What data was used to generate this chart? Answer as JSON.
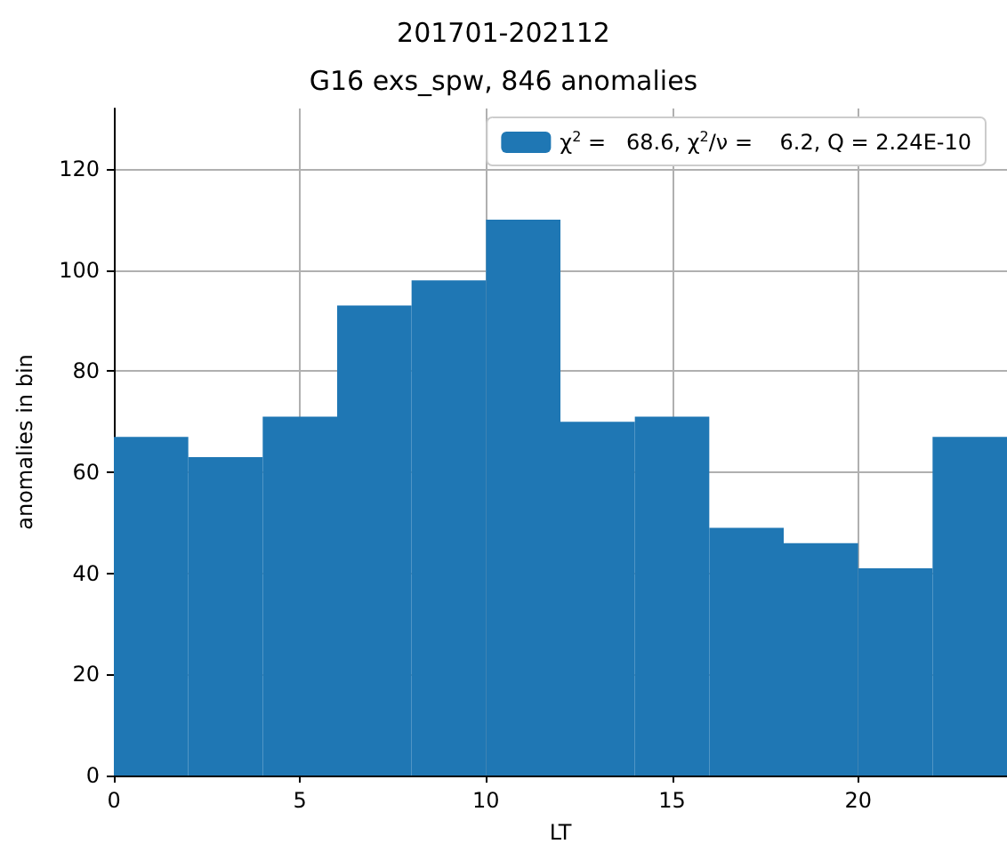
{
  "chart_data": {
    "type": "histogram",
    "title": "201701-202112",
    "subtitle": "G16 exs_spw, 846 anomalies",
    "xlabel": "LT",
    "ylabel": "anomalies in bin",
    "bins": [
      0,
      2,
      4,
      6,
      8,
      10,
      12,
      14,
      16,
      18,
      20,
      22,
      24
    ],
    "series": [
      {
        "name": "χ$^{2}$ =   68.6, χ$^{2}$/ν =    6.2, Q = 2.24E-10",
        "color": "#1f77b4",
        "values": [
          67,
          63,
          71,
          93,
          98,
          110,
          70,
          71,
          49,
          46,
          41,
          67
        ]
      }
    ],
    "xlim": [
      0,
      24
    ],
    "xticks": [
      0,
      5,
      10,
      15,
      20
    ],
    "ylim": [
      0,
      132
    ],
    "yticks": [
      0,
      20,
      40,
      60,
      80,
      100,
      120
    ],
    "grid": true,
    "legend": "top right"
  }
}
